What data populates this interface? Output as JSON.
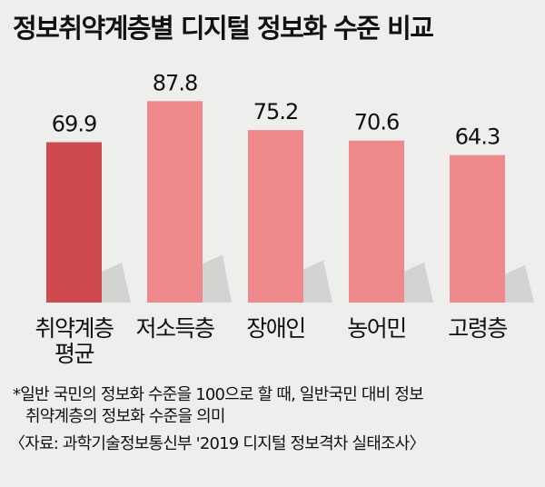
{
  "chart_data": {
    "type": "bar",
    "title": "정보취약계층별 디지털 정보화 수준 비교",
    "categories": [
      [
        "취약계층",
        "평균"
      ],
      [
        "저소득층"
      ],
      [
        "장애인"
      ],
      [
        "농어민"
      ],
      [
        "고령층"
      ]
    ],
    "values": [
      69.9,
      87.8,
      75.2,
      70.6,
      64.3
    ],
    "value_labels": [
      "69.9",
      "87.8",
      "75.2",
      "70.6",
      "64.3"
    ],
    "bar_colors": [
      "#cf4a4f",
      "#ee8a8c",
      "#ee8a8c",
      "#ee8a8c",
      "#ee8a8c"
    ],
    "ylim": [
      0,
      100
    ],
    "grid": false,
    "legend": "none"
  },
  "footnotes": {
    "line1": "*일반 국민의 정보화 수준을 100으로 할 때, 일반국민 대비 정보",
    "line2": "취약계층의 정보화 수준을 의미",
    "source": "〈자료: 과학기술정보통신부 '2019 디지털 정보격차 실태조사〉"
  },
  "colors": {
    "background": "#eeeeec",
    "highlight_bar": "#cf4a4f",
    "bar": "#ee8a8c",
    "shadow": "#d3d3d1"
  }
}
